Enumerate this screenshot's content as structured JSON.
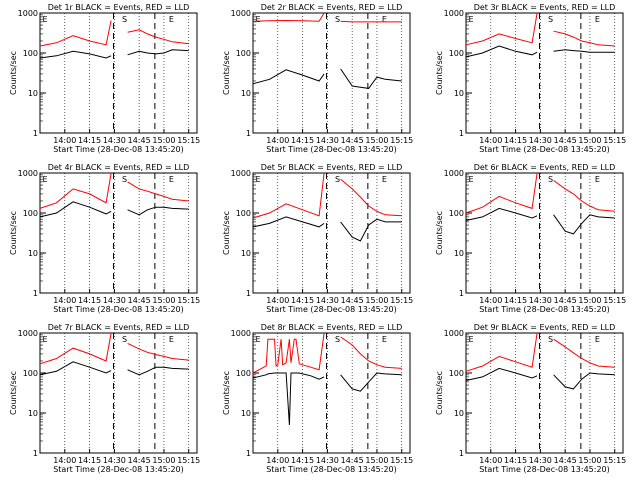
{
  "figure": {
    "x_tick_labels": [
      "14:00",
      "14:15",
      "14:30",
      "14:45",
      "15:00",
      "15:15"
    ],
    "y_tick_labels": [
      "1",
      "10",
      "100",
      "1000"
    ],
    "ylabel": "Counts/sec",
    "xlabel": "Start Time (28-Dec-08 13:45:20)",
    "marker_labels": [
      "E",
      "S",
      "E"
    ],
    "colors": {
      "events": "#000000",
      "lld": "#ff0000",
      "axis": "#000000",
      "background": "#ffffff"
    }
  },
  "chart_data": [
    {
      "type": "line",
      "title": "Det 1r BLACK = Events, RED = LLD",
      "x_minutes_after_1345": [
        0,
        10,
        20,
        30,
        40,
        43,
        53,
        60,
        65,
        70,
        75,
        80,
        90
      ],
      "ylim": [
        1,
        1000
      ],
      "yscale": "log",
      "grid": "dotted vertical",
      "series": [
        {
          "name": "Events",
          "values": [
            75,
            85,
            110,
            95,
            75,
            85,
            90,
            110,
            100,
            95,
            100,
            120,
            115
          ]
        },
        {
          "name": "LLD",
          "values": [
            150,
            180,
            270,
            200,
            160,
            650,
            330,
            380,
            300,
            250,
            220,
            190,
            170
          ]
        }
      ]
    },
    {
      "type": "line",
      "title": "Det 2r BLACK = Events, RED = LLD",
      "x_minutes_after_1345": [
        0,
        10,
        20,
        30,
        40,
        43,
        53,
        60,
        65,
        70,
        75,
        80,
        90
      ],
      "ylim": [
        1,
        1000
      ],
      "yscale": "log",
      "grid": "dotted vertical",
      "series": [
        {
          "name": "Events",
          "values": [
            17,
            22,
            38,
            28,
            20,
            30,
            40,
            15,
            14,
            13,
            25,
            22,
            20
          ]
        },
        {
          "name": "LLD",
          "values": [
            620,
            640,
            650,
            640,
            620,
            1000,
            620,
            600,
            600,
            600,
            600,
            600,
            600
          ]
        }
      ]
    },
    {
      "type": "line",
      "title": "Det 3r BLACK = Events, RED = LLD",
      "x_minutes_after_1345": [
        0,
        10,
        20,
        30,
        40,
        43,
        53,
        60,
        65,
        70,
        75,
        80,
        90
      ],
      "ylim": [
        1,
        1000
      ],
      "yscale": "log",
      "grid": "dotted vertical",
      "series": [
        {
          "name": "Events",
          "values": [
            80,
            100,
            150,
            110,
            90,
            105,
            110,
            120,
            115,
            110,
            105,
            105,
            105
          ]
        },
        {
          "name": "LLD",
          "values": [
            160,
            200,
            300,
            230,
            180,
            1000,
            350,
            300,
            250,
            200,
            180,
            160,
            150
          ]
        }
      ]
    },
    {
      "type": "line",
      "title": "Det 4r BLACK = Events, RED = LLD",
      "x_minutes_after_1345": [
        0,
        10,
        20,
        30,
        40,
        43,
        53,
        60,
        65,
        70,
        75,
        80,
        90
      ],
      "ylim": [
        1,
        1000
      ],
      "yscale": "log",
      "grid": "dotted vertical",
      "series": [
        {
          "name": "Events",
          "values": [
            80,
            100,
            190,
            140,
            95,
            110,
            120,
            90,
            120,
            140,
            140,
            130,
            125
          ]
        },
        {
          "name": "LLD",
          "values": [
            130,
            180,
            400,
            300,
            180,
            1000,
            600,
            400,
            350,
            300,
            260,
            220,
            200
          ]
        }
      ]
    },
    {
      "type": "line",
      "title": "Det 5r BLACK = Events, RED = LLD",
      "x_minutes_after_1345": [
        0,
        10,
        20,
        30,
        40,
        43,
        53,
        60,
        65,
        70,
        75,
        80,
        90
      ],
      "ylim": [
        1,
        1000
      ],
      "yscale": "log",
      "grid": "dotted vertical",
      "series": [
        {
          "name": "Events",
          "values": [
            45,
            55,
            80,
            60,
            45,
            55,
            60,
            25,
            20,
            50,
            70,
            60,
            60
          ]
        },
        {
          "name": "LLD",
          "values": [
            75,
            100,
            170,
            120,
            85,
            1000,
            700,
            400,
            250,
            150,
            110,
            90,
            85
          ]
        }
      ]
    },
    {
      "type": "line",
      "title": "Det 6r BLACK = Events, RED = LLD",
      "x_minutes_after_1345": [
        0,
        10,
        20,
        30,
        40,
        43,
        53,
        60,
        65,
        70,
        75,
        80,
        90
      ],
      "ylim": [
        1,
        1000
      ],
      "yscale": "log",
      "grid": "dotted vertical",
      "series": [
        {
          "name": "Events",
          "values": [
            65,
            80,
            130,
            100,
            75,
            85,
            90,
            35,
            30,
            55,
            90,
            80,
            75
          ]
        },
        {
          "name": "LLD",
          "values": [
            100,
            140,
            260,
            180,
            130,
            1000,
            650,
            400,
            300,
            200,
            150,
            120,
            110
          ]
        }
      ]
    },
    {
      "type": "line",
      "title": "Det 7r BLACK = Events, RED = LLD",
      "x_minutes_after_1345": [
        0,
        10,
        20,
        30,
        40,
        43,
        53,
        60,
        65,
        70,
        75,
        80,
        90
      ],
      "ylim": [
        1,
        1000
      ],
      "yscale": "log",
      "grid": "dotted vertical",
      "series": [
        {
          "name": "Events",
          "values": [
            90,
            110,
            190,
            140,
            100,
            115,
            120,
            90,
            110,
            140,
            140,
            130,
            125
          ]
        },
        {
          "name": "LLD",
          "values": [
            170,
            230,
            420,
            300,
            200,
            1000,
            550,
            400,
            330,
            290,
            260,
            230,
            210
          ]
        }
      ]
    },
    {
      "type": "line",
      "title": "Det 8r BLACK = Events, RED = LLD",
      "x_minutes_after_1345": [
        0,
        8,
        9,
        13,
        14,
        15,
        17,
        18,
        20,
        22,
        23,
        25,
        26,
        28,
        30,
        35,
        40,
        43,
        53,
        60,
        65,
        70,
        75,
        80,
        90
      ],
      "ylim": [
        1,
        1000
      ],
      "yscale": "log",
      "grid": "dotted vertical",
      "series": [
        {
          "name": "Events",
          "values": [
            75,
            90,
            95,
            100,
            100,
            100,
            100,
            100,
            100,
            5,
            100,
            100,
            100,
            100,
            95,
            85,
            70,
            80,
            90,
            40,
            35,
            60,
            100,
            95,
            90
          ]
        },
        {
          "name": "LLD",
          "values": [
            100,
            150,
            700,
            700,
            150,
            160,
            700,
            160,
            180,
            700,
            180,
            700,
            700,
            170,
            160,
            140,
            120,
            1000,
            800,
            500,
            300,
            200,
            160,
            140,
            130
          ]
        }
      ]
    },
    {
      "type": "line",
      "title": "Det 9r BLACK = Events, RED = LLD",
      "x_minutes_after_1345": [
        0,
        10,
        20,
        30,
        40,
        43,
        53,
        60,
        65,
        70,
        75,
        80,
        90
      ],
      "ylim": [
        1,
        1000
      ],
      "yscale": "log",
      "grid": "dotted vertical",
      "series": [
        {
          "name": "Events",
          "values": [
            65,
            80,
            130,
            100,
            75,
            85,
            90,
            45,
            40,
            70,
            100,
            95,
            90
          ]
        },
        {
          "name": "LLD",
          "values": [
            110,
            150,
            260,
            190,
            140,
            1000,
            700,
            450,
            320,
            230,
            180,
            150,
            140
          ]
        }
      ]
    }
  ]
}
